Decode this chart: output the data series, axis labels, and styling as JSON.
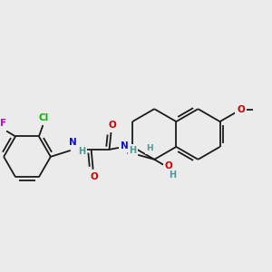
{
  "bg": "#EBEBEB",
  "bc": "#1a1a1a",
  "bw": 1.3,
  "dbo": 0.012,
  "col": {
    "N": "#1111CC",
    "O": "#CC0000",
    "Cl": "#00BB00",
    "F": "#CC00CC",
    "H": "#4a9999"
  },
  "fs": 7.5
}
